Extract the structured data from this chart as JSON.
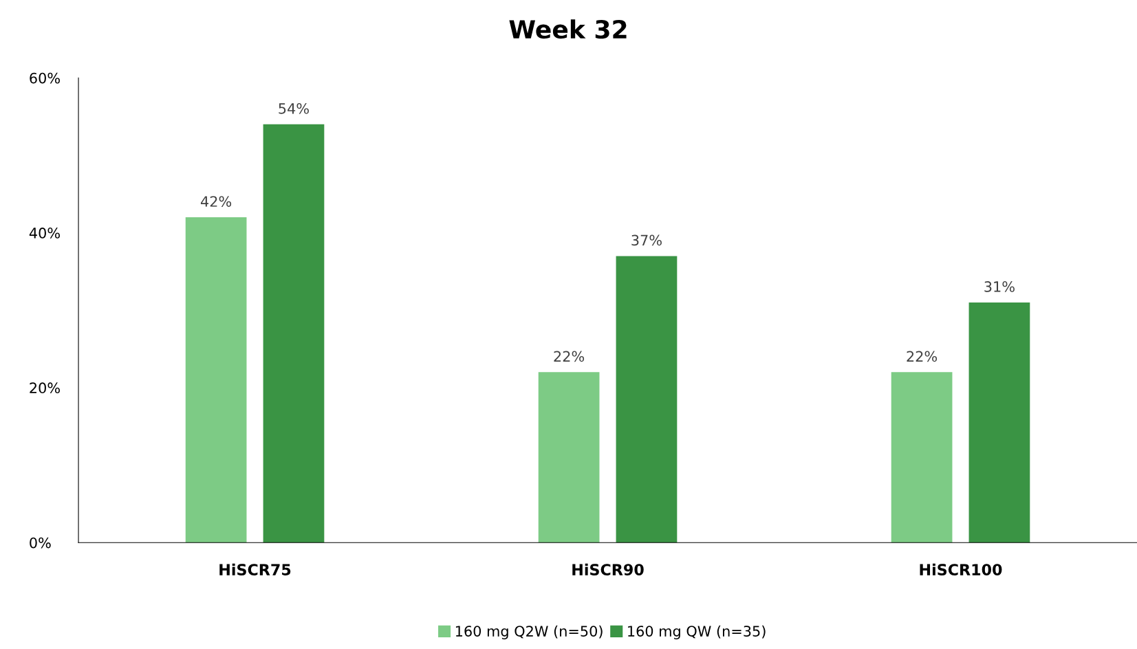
{
  "chart_data": {
    "type": "bar",
    "title": "Week 32",
    "categories": [
      "HiSCR75",
      "HiSCR90",
      "HiSCR100"
    ],
    "series": [
      {
        "name": "160 mg Q2W (n=50)",
        "color": "#7dcb85",
        "values": [
          42,
          22,
          22
        ],
        "value_labels": [
          "42%",
          "22%",
          "22%"
        ]
      },
      {
        "name": "160 mg QW (n=35)",
        "color": "#3a9444",
        "values": [
          54,
          37,
          31
        ],
        "value_labels": [
          "54%",
          "37%",
          "31%"
        ]
      }
    ],
    "ylim": [
      0,
      60
    ],
    "yticks": [
      {
        "value": 0,
        "label": "0%"
      },
      {
        "value": 20,
        "label": "20%"
      },
      {
        "value": 40,
        "label": "40%"
      },
      {
        "value": 60,
        "label": "60%"
      }
    ],
    "grid": false,
    "legend": "bottom"
  }
}
